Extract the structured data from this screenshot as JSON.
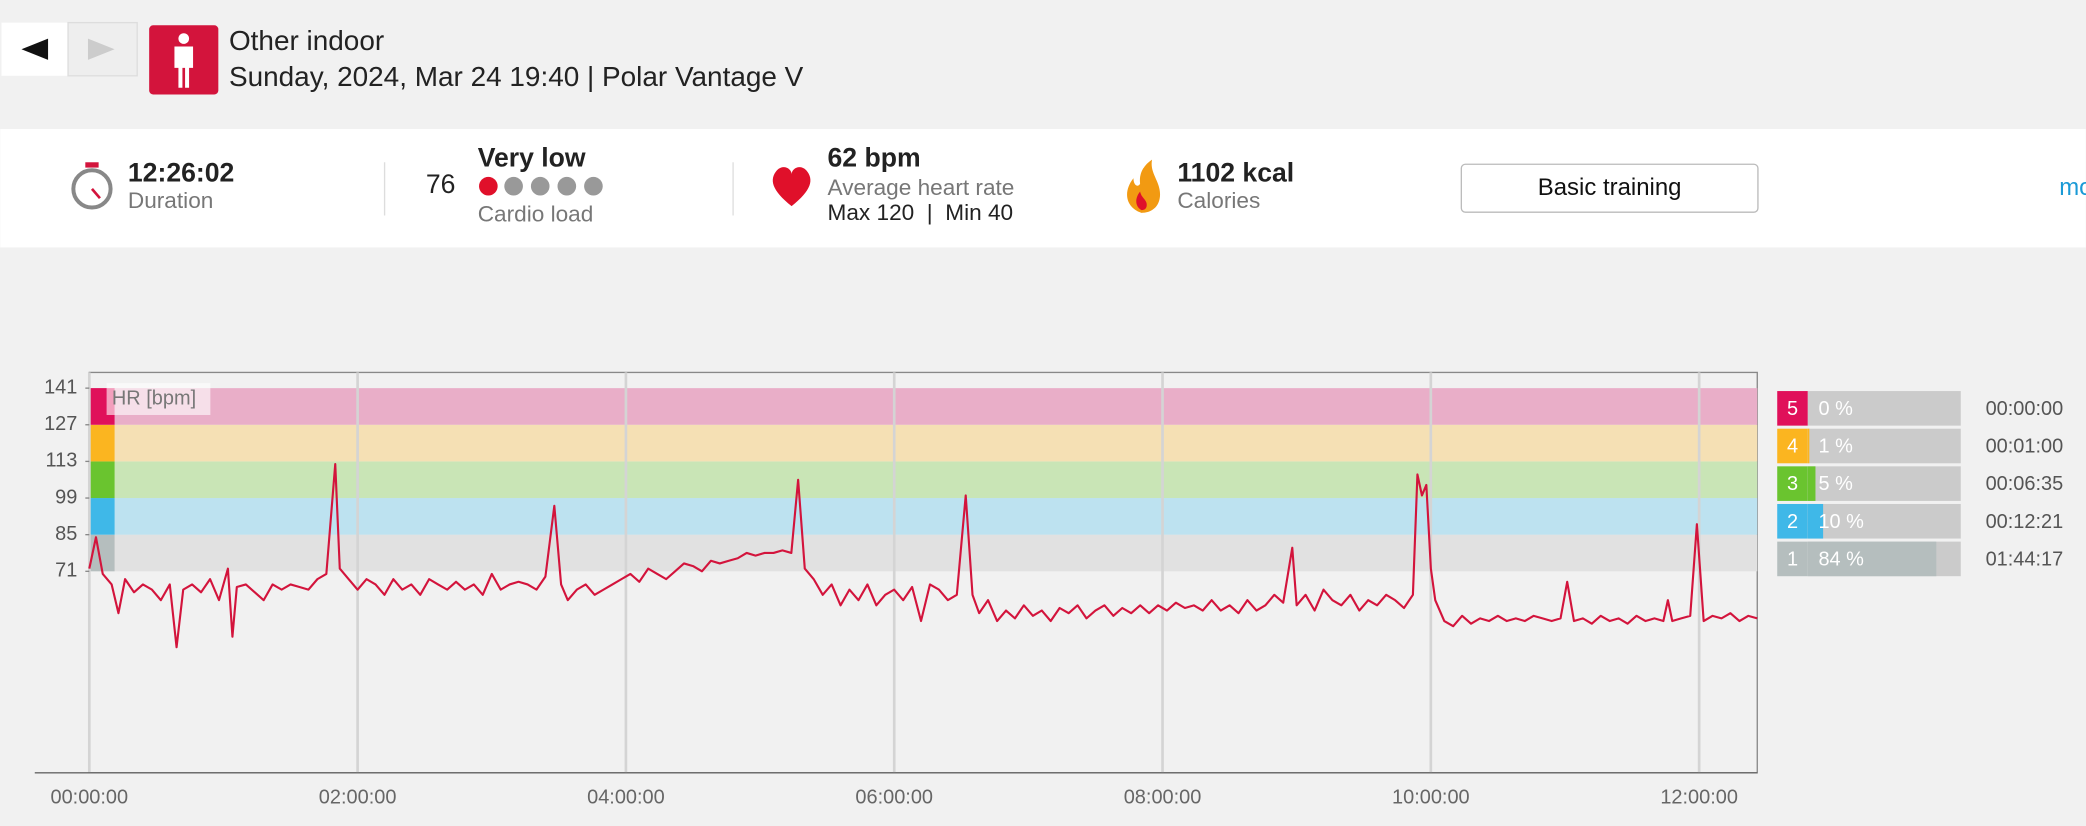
{
  "header": {
    "title": "Other indoor",
    "subtitle": "Sunday, 2024, Mar 24 19:40 | Polar Vantage V"
  },
  "summary": {
    "duration": "12:26:02",
    "duration_label": "Duration",
    "cardio_value": "76",
    "cardio_level": "Very low",
    "cardio_label": "Cardio load",
    "hr_value": "62 bpm",
    "hr_label": "Average heart rate",
    "hr_range": "Max 120  |  Min 40",
    "calories_value": "1102 kcal",
    "calories_label": "Calories",
    "button": "Basic training",
    "more": "mo"
  },
  "chart_data": {
    "type": "line",
    "y_label": "HR [bpm]",
    "color": "#d3143c",
    "xlim": [
      0,
      746
    ],
    "xticks": [
      {
        "value": 0,
        "label": "00:00:00"
      },
      {
        "value": 120,
        "label": "02:00:00"
      },
      {
        "value": 240,
        "label": "04:00:00"
      },
      {
        "value": 360,
        "label": "06:00:00"
      },
      {
        "value": 480,
        "label": "08:00:00"
      },
      {
        "value": 600,
        "label": "10:00:00"
      },
      {
        "value": 720,
        "label": "12:00:00"
      }
    ],
    "ylim": [
      -6,
      147
    ],
    "yticks": [
      71,
      85,
      99,
      113,
      127,
      141
    ],
    "grid": true,
    "x": [
      0,
      3,
      6,
      10,
      13,
      16,
      20,
      24,
      28,
      32,
      36,
      39,
      42,
      46,
      50,
      54,
      58,
      62,
      64,
      66,
      70,
      74,
      78,
      82,
      86,
      90,
      94,
      98,
      102,
      106,
      110,
      112,
      116,
      120,
      124,
      128,
      132,
      136,
      140,
      144,
      148,
      152,
      156,
      160,
      164,
      168,
      172,
      176,
      180,
      184,
      188,
      192,
      196,
      200,
      204,
      208,
      211,
      214,
      218,
      222,
      226,
      230,
      234,
      238,
      242,
      246,
      250,
      254,
      258,
      262,
      266,
      270,
      274,
      278,
      282,
      286,
      290,
      294,
      298,
      302,
      306,
      310,
      314,
      317,
      320,
      324,
      328,
      332,
      336,
      340,
      344,
      348,
      352,
      356,
      360,
      364,
      368,
      372,
      376,
      380,
      384,
      388,
      392,
      395,
      398,
      402,
      406,
      410,
      414,
      418,
      422,
      426,
      430,
      434,
      438,
      442,
      446,
      450,
      454,
      458,
      462,
      466,
      470,
      474,
      478,
      482,
      486,
      490,
      494,
      498,
      502,
      506,
      510,
      514,
      518,
      522,
      526,
      530,
      534,
      538,
      540,
      544,
      548,
      552,
      556,
      560,
      564,
      568,
      572,
      576,
      580,
      584,
      588,
      592,
      594,
      596,
      598,
      600,
      602,
      606,
      610,
      614,
      618,
      622,
      626,
      630,
      634,
      638,
      642,
      646,
      650,
      654,
      658,
      661,
      664,
      668,
      672,
      676,
      680,
      684,
      688,
      692,
      696,
      700,
      704,
      706,
      708,
      712,
      716,
      719,
      722,
      726,
      730,
      734,
      738,
      742,
      746
    ],
    "values": [
      72,
      84,
      70,
      66,
      55,
      68,
      63,
      66,
      64,
      60,
      66,
      42,
      64,
      66,
      63,
      68,
      60,
      72,
      46,
      65,
      66,
      63,
      60,
      66,
      64,
      66,
      65,
      64,
      68,
      70,
      112,
      72,
      68,
      64,
      68,
      66,
      62,
      68,
      64,
      66,
      62,
      68,
      66,
      64,
      67,
      64,
      66,
      62,
      70,
      64,
      66,
      67,
      66,
      64,
      69,
      96,
      66,
      60,
      64,
      66,
      62,
      64,
      66,
      68,
      70,
      67,
      72,
      70,
      68,
      71,
      74,
      73,
      71,
      75,
      74,
      75,
      76,
      78,
      77,
      78,
      78,
      79,
      78,
      106,
      72,
      68,
      62,
      66,
      58,
      64,
      60,
      66,
      58,
      62,
      64,
      60,
      65,
      52,
      66,
      64,
      60,
      62,
      100,
      62,
      55,
      60,
      52,
      56,
      53,
      58,
      54,
      56,
      52,
      57,
      55,
      58,
      53,
      56,
      58,
      54,
      57,
      55,
      58,
      55,
      58,
      56,
      59,
      57,
      58,
      56,
      60,
      56,
      58,
      55,
      60,
      56,
      58,
      62,
      59,
      80,
      58,
      62,
      56,
      64,
      60,
      58,
      62,
      56,
      60,
      58,
      62,
      60,
      57,
      62,
      108,
      100,
      104,
      72,
      60,
      52,
      50,
      54,
      51,
      53,
      52,
      54,
      52,
      53,
      52,
      54,
      53,
      52,
      53,
      67,
      52,
      53,
      51,
      54,
      52,
      53,
      51,
      54,
      52,
      53,
      52,
      60,
      52,
      53,
      54,
      89,
      52,
      54,
      53,
      55,
      52,
      54,
      53
    ],
    "zones": {
      "categories": [
        "5",
        "4",
        "3",
        "2",
        "1"
      ],
      "values": [
        0,
        1,
        5,
        10,
        84
      ],
      "value_labels": [
        "0 %",
        "1 %",
        "5 %",
        "10 %",
        "84 %"
      ],
      "times": [
        "00:00:00",
        "00:01:00",
        "00:06:35",
        "00:12:21",
        "01:44:17"
      ],
      "colors": [
        "#e0105a",
        "#fbb520",
        "#6ac42f",
        "#3fb8e8",
        "#b5bebe"
      ],
      "band_colors": [
        "#e9aec8",
        "#f5e0b4",
        "#c9e5b6",
        "#bde2f0",
        "#e1e1e1"
      ]
    }
  }
}
